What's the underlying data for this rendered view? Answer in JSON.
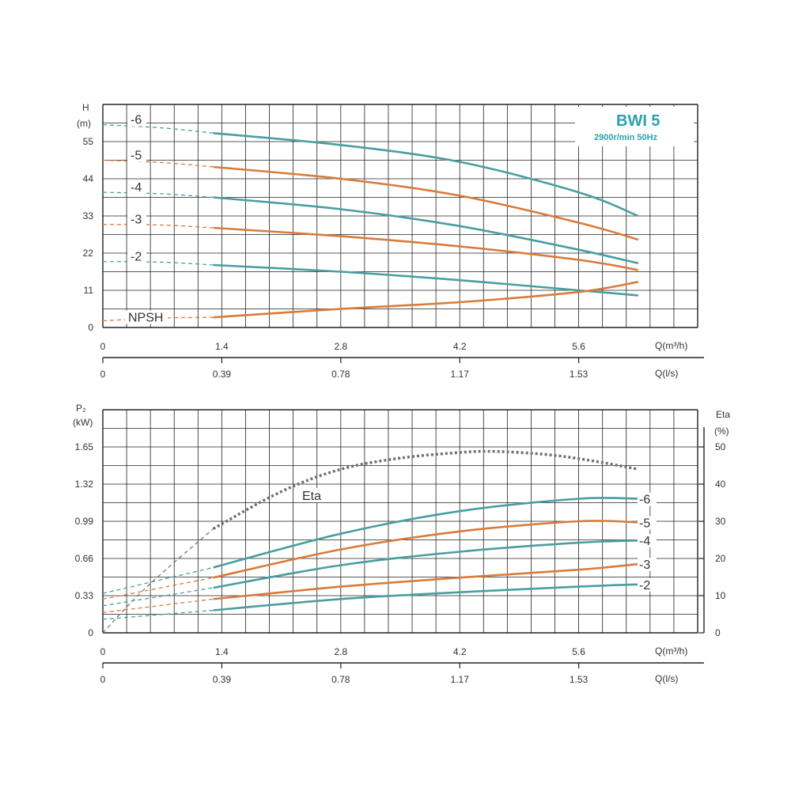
{
  "colors": {
    "teal": "#4a9ea0",
    "orange": "#d97b3a",
    "grid": "#222222",
    "eta": "#707070",
    "title": "#2aa3ad"
  },
  "chart_data": [
    {
      "type": "line",
      "title": "BWI 5",
      "subtitle": "2900r/min 50Hz",
      "ylabel": "H",
      "yunit": "(m)",
      "xlabel": "Q(m³/h)",
      "x2label": "Q(l/s)",
      "xlim": [
        0,
        7
      ],
      "ylim": [
        0,
        66
      ],
      "yticks": [
        "0",
        "11",
        "22",
        "33",
        "44",
        "55"
      ],
      "xticks": [
        "0",
        "1.4",
        "2.8",
        "4.2",
        "5.6"
      ],
      "x2ticks": [
        "0",
        "0.39",
        "0.78",
        "1.17",
        "1.53"
      ],
      "grid": true,
      "series": [
        {
          "name": "-6",
          "color": "teal",
          "dashed_x": [
            0,
            1.3
          ],
          "x": [
            1.3,
            2.8,
            4.2,
            5.6,
            6.3
          ],
          "y": [
            57.5,
            54,
            49,
            40,
            33
          ]
        },
        {
          "name": "-5",
          "color": "orange",
          "dashed_x": [
            0,
            1.3
          ],
          "x": [
            1.3,
            2.8,
            4.2,
            5.6,
            6.3
          ],
          "y": [
            47.5,
            44,
            39,
            31,
            26
          ]
        },
        {
          "name": "-4",
          "color": "teal",
          "dashed_x": [
            0,
            1.3
          ],
          "x": [
            1.3,
            2.8,
            4.2,
            5.6,
            6.3
          ],
          "y": [
            38.5,
            35,
            30,
            23,
            19
          ]
        },
        {
          "name": "-3",
          "color": "orange",
          "dashed_x": [
            0,
            1.3
          ],
          "x": [
            1.3,
            2.8,
            4.2,
            5.6,
            6.3
          ],
          "y": [
            29.5,
            27,
            24,
            20,
            17
          ]
        },
        {
          "name": "-2",
          "color": "teal",
          "dashed_x": [
            0,
            1.3
          ],
          "x": [
            1.3,
            2.8,
            4.2,
            5.6,
            6.3
          ],
          "y": [
            18.5,
            16.5,
            14,
            11,
            9.5
          ]
        },
        {
          "name": "NPSH",
          "color": "orange",
          "dashed_x": [
            0,
            1.3
          ],
          "x": [
            1.3,
            2.8,
            4.2,
            5.6,
            6.3
          ],
          "y": [
            3,
            5.5,
            7.5,
            10.5,
            13.5
          ]
        }
      ],
      "dashed_start_y": {
        "-6": 60,
        "-5": 49.5,
        "-4": 40,
        "-3": 30.5,
        "-2": 19.5,
        "NPSH": 2
      }
    },
    {
      "type": "line",
      "ylabel": "P₂",
      "yunit": "(kW)",
      "y2label": "Eta",
      "y2unit": "(%)",
      "xlabel": "Q(m³/h)",
      "x2label": "Q(l/s)",
      "xlim": [
        0,
        7
      ],
      "ylim": [
        0,
        1.98
      ],
      "y2lim": [
        0,
        60
      ],
      "yticks": [
        "0",
        "0.33",
        "0.66",
        "0.99",
        "1.32",
        "1.65"
      ],
      "y2ticks": [
        "0",
        "10",
        "20",
        "30",
        "40",
        "50"
      ],
      "xticks": [
        "0",
        "1.4",
        "2.8",
        "4.2",
        "5.6"
      ],
      "x2ticks": [
        "0",
        "0.39",
        "0.78",
        "1.17",
        "1.53"
      ],
      "grid": true,
      "series": [
        {
          "name": "-6",
          "color": "teal",
          "dashed_start_y": 0.35,
          "x": [
            1.3,
            2.8,
            4.2,
            5.6,
            6.3
          ],
          "y": [
            0.58,
            0.88,
            1.08,
            1.19,
            1.19
          ]
        },
        {
          "name": "-5",
          "color": "orange",
          "dashed_start_y": 0.3,
          "x": [
            1.3,
            2.8,
            4.2,
            5.6,
            6.3
          ],
          "y": [
            0.49,
            0.74,
            0.9,
            0.99,
            0.98
          ]
        },
        {
          "name": "-4",
          "color": "teal",
          "dashed_start_y": 0.24,
          "x": [
            1.3,
            2.8,
            4.2,
            5.6,
            6.3
          ],
          "y": [
            0.4,
            0.6,
            0.72,
            0.8,
            0.82
          ]
        },
        {
          "name": "-3",
          "color": "orange",
          "dashed_start_y": 0.18,
          "x": [
            1.3,
            2.8,
            4.2,
            5.6,
            6.3
          ],
          "y": [
            0.3,
            0.41,
            0.49,
            0.56,
            0.61
          ]
        },
        {
          "name": "-2",
          "color": "teal",
          "dashed_start_y": 0.12,
          "x": [
            1.3,
            2.8,
            4.2,
            5.6,
            6.3
          ],
          "y": [
            0.2,
            0.3,
            0.36,
            0.41,
            0.43
          ]
        }
      ],
      "eta": {
        "name": "Eta",
        "x": [
          0,
          0.5,
          1.3,
          2.1,
          2.8,
          3.5,
          4.2,
          4.6,
          5.2,
          5.7,
          6.3
        ],
        "y": [
          0,
          12,
          28,
          38,
          44,
          47,
          48.5,
          48.8,
          48,
          46.5,
          44
        ]
      }
    }
  ]
}
